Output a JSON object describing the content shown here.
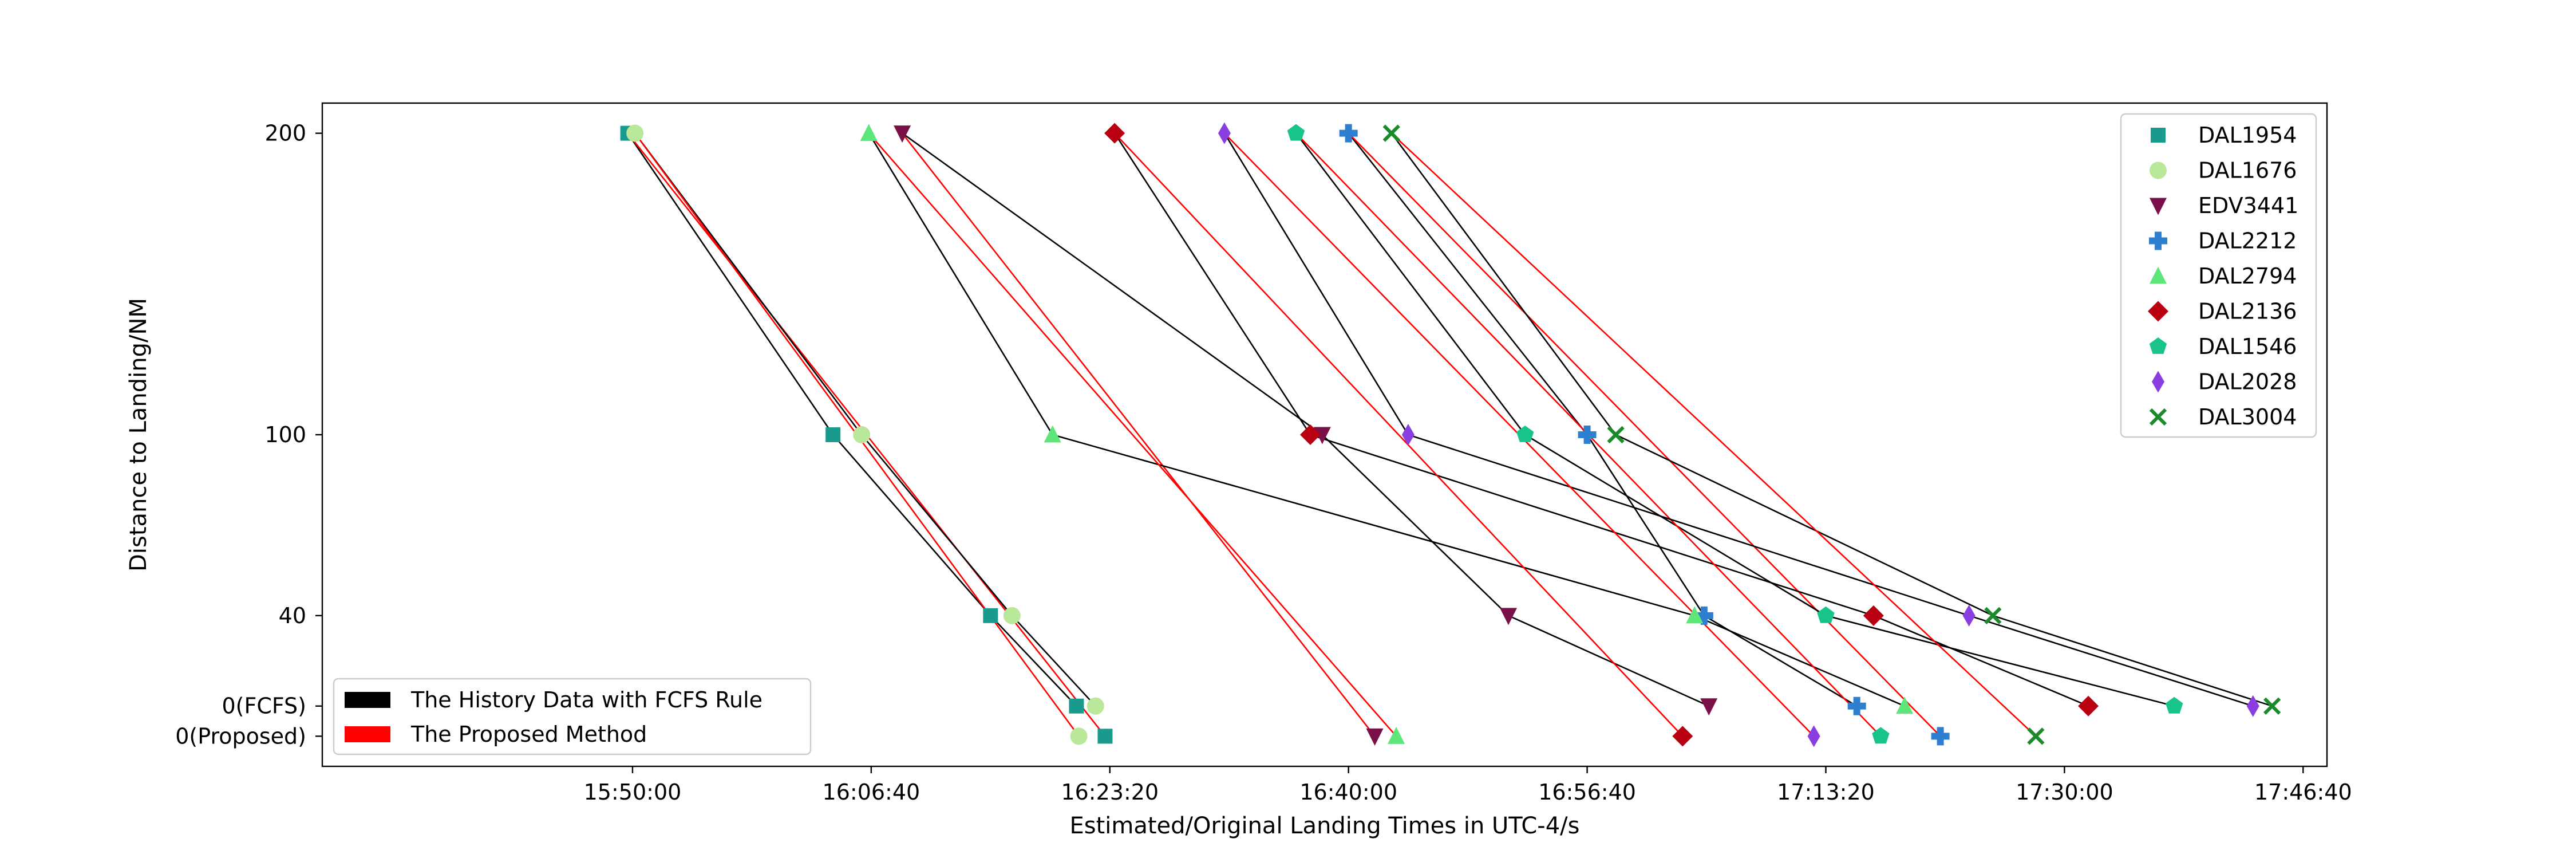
{
  "chart_data": {
    "type": "scatter",
    "title": "",
    "xlabel": "Estimated/Original Landing Times in UTC-4/s",
    "ylabel": "Distance to Landing/NM",
    "x_ticks": [
      {
        "t": 57000,
        "label": "15:50:00"
      },
      {
        "t": 58000,
        "label": "16:06:40"
      },
      {
        "t": 59000,
        "label": "16:23:20"
      },
      {
        "t": 60000,
        "label": "16:40:00"
      },
      {
        "t": 61000,
        "label": "16:56:40"
      },
      {
        "t": 62000,
        "label": "17:13:20"
      },
      {
        "t": 63000,
        "label": "17:30:00"
      },
      {
        "t": 64000,
        "label": "17:46:40"
      }
    ],
    "xlim": [
      55700,
      64100
    ],
    "y_ticks": [
      {
        "key": "200",
        "label": "200"
      },
      {
        "key": "100",
        "label": "100"
      },
      {
        "key": "40",
        "label": "40"
      },
      {
        "key": "fcfs",
        "label": "0(FCFS)"
      },
      {
        "key": "proposed",
        "label": "0(Proposed)"
      }
    ],
    "y_levels": {
      "200": 200,
      "100": 100,
      "40": 40,
      "fcfs": 10,
      "proposed": 0
    },
    "ylim": [
      -10,
      210
    ],
    "series": [
      {
        "name": "DAL1954",
        "marker": "square",
        "color": "#1a9a8c",
        "p200": 56980,
        "p100": 57840,
        "p40": 58500,
        "fcfs": 58860,
        "proposed": 58980
      },
      {
        "name": "DAL1676",
        "marker": "circle",
        "color": "#b9e89a",
        "p200": 57010,
        "p100": 57960,
        "p40": 58590,
        "fcfs": 58940,
        "proposed": 58870
      },
      {
        "name": "EDV3441",
        "marker": "triangle-down",
        "color": "#7a1048",
        "p200": 58130,
        "p100": 59890,
        "p40": 60670,
        "fcfs": 61510,
        "proposed": 60110
      },
      {
        "name": "DAL2212",
        "marker": "plus",
        "color": "#2f7fd0",
        "p200": 60000,
        "p100": 61000,
        "p40": 61490,
        "fcfs": 62130,
        "proposed": 62480
      },
      {
        "name": "DAL2794",
        "marker": "triangle-up",
        "color": "#5fe67a",
        "p200": 57990,
        "p100": 58760,
        "p40": 61450,
        "fcfs": 62330,
        "proposed": 60200
      },
      {
        "name": "DAL2136",
        "marker": "diamond",
        "color": "#b80010",
        "p200": 59020,
        "p100": 59840,
        "p40": 62200,
        "fcfs": 63100,
        "proposed": 61400
      },
      {
        "name": "DAL1546",
        "marker": "pentagon",
        "color": "#19c48a",
        "p200": 59780,
        "p100": 60740,
        "p40": 62000,
        "fcfs": 63460,
        "proposed": 62230
      },
      {
        "name": "DAL2028",
        "marker": "thin-diamond",
        "color": "#8a3ee0",
        "p200": 59480,
        "p100": 60250,
        "p40": 62600,
        "fcfs": 63790,
        "proposed": 61950
      },
      {
        "name": "DAL3004",
        "marker": "x",
        "color": "#1a8a2a",
        "p200": 60180,
        "p100": 61120,
        "p40": 62700,
        "fcfs": 63870,
        "proposed": 62880
      }
    ],
    "legend": {
      "placement": "top-right",
      "entries": [
        "DAL1954",
        "DAL1676",
        "EDV3441",
        "DAL2212",
        "DAL2794",
        "DAL2136",
        "DAL1546",
        "DAL2028",
        "DAL3004"
      ]
    },
    "method_legend": {
      "placement": "bottom-left",
      "entries": [
        {
          "label": "The History Data with FCFS Rule",
          "color": "#000000"
        },
        {
          "label": "The Proposed Method",
          "color": "#ff0000"
        }
      ]
    },
    "grid": false
  }
}
